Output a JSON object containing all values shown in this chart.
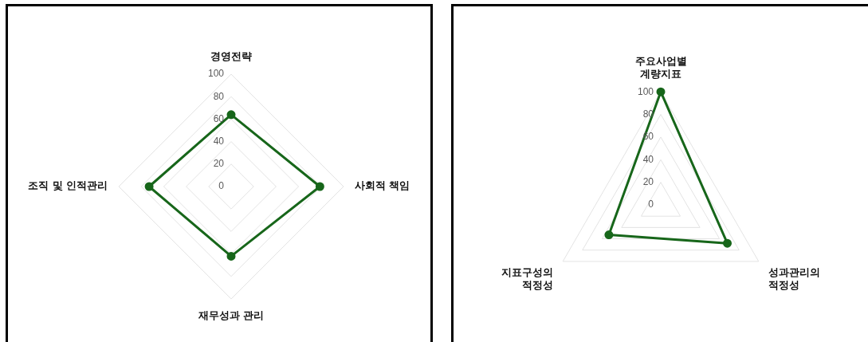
{
  "chart_data": [
    {
      "type": "radar",
      "categories": [
        "경영전략",
        "사회적 책임",
        "재무성과 관리",
        "조직 및 인적관리"
      ],
      "series": [
        {
          "color": "#17661a",
          "values": [
            64,
            79,
            62,
            73
          ]
        }
      ],
      "ylim": [
        0,
        100
      ],
      "yticks": [
        0,
        20,
        40,
        60,
        80,
        100
      ],
      "grid": true,
      "legend": false,
      "marker": "circle",
      "line_style": "solid"
    },
    {
      "type": "radar",
      "categories": [
        "주요사업별\n계량지표",
        "성과관리의\n적정성",
        "지표구성의\n적정성"
      ],
      "series": [
        {
          "color": "#17661a",
          "values": [
            100,
            68,
            53
          ]
        }
      ],
      "ylim": [
        0,
        100
      ],
      "yticks": [
        0,
        20,
        40,
        60,
        80,
        100
      ],
      "grid": true,
      "legend": false,
      "marker": "circle",
      "line_style": "solid"
    }
  ]
}
